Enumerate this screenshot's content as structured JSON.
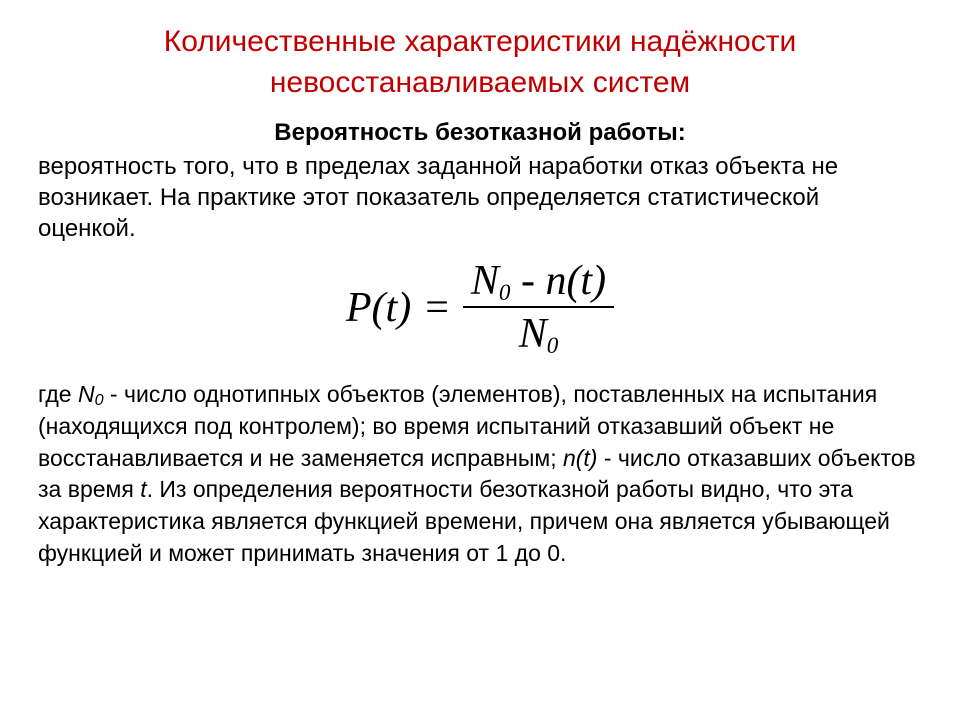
{
  "colors": {
    "title": "#c00000",
    "text": "#000000",
    "background": "#ffffff"
  },
  "typography": {
    "title_fontsize": 30,
    "subtitle_fontsize": 24,
    "body_fontsize": 24,
    "desc_fontsize": 23,
    "formula_fontsize": 42,
    "body_family": "Arial",
    "formula_family": "Times New Roman"
  },
  "title_line1": "Количественные характеристики надёжности",
  "title_line2": "невосстанавливаемых систем",
  "subtitle": "Вероятность безотказной работы:",
  "para1": "вероятность того, что в пределах заданной наработки отказ объекта не возникает. На практике этот показатель определяется статистической оценкой.",
  "formula": {
    "lhs": "P(t)",
    "eq": "=",
    "num_a": "N",
    "num_a_sub": "0",
    "num_mid": " - n(t)",
    "den_a": "N",
    "den_a_sub": "0"
  },
  "desc": {
    "t1": "где ",
    "v1": "N",
    "v1s": "0",
    "t2": " - число однотипных объектов (элементов), поставленных на испытания (находящихся под контролем); во время испытаний отказавший объект не восстанавливается и не заменяется исправным; ",
    "v2": "n(t)",
    "t3": " - число отказавших объектов за время ",
    "v3": "t",
    "t4": ". Из определения вероятности безотказной работы видно, что эта характеристика является функцией времени, причем она является убывающей функцией и может принимать значения от 1 до 0."
  }
}
